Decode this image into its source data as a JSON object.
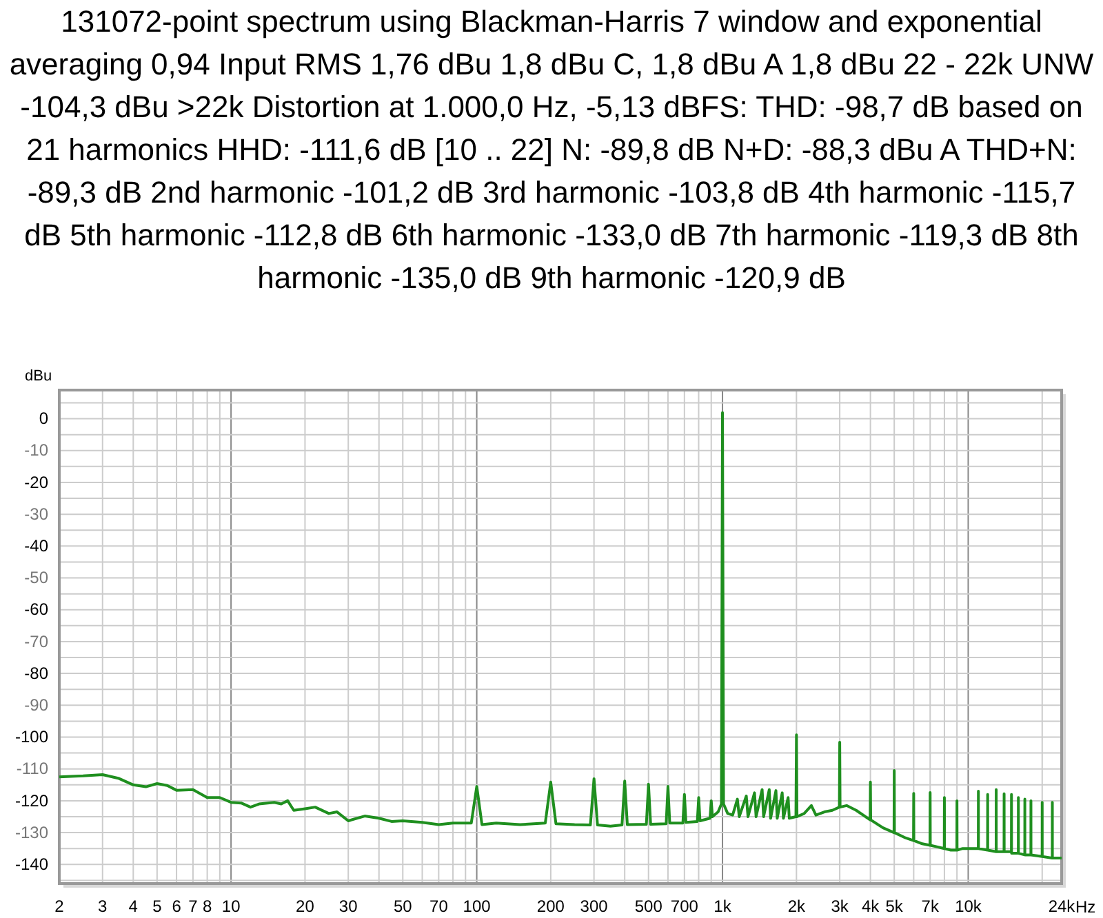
{
  "chart_data": {
    "type": "line",
    "title": "131072-point spectrum using Blackman-Harris 7 window and exponential averaging 0,94 Input RMS 1,76 dBu 1,8 dBu C, 1,8 dBu A 1,8 dBu 22 - 22k UNW -104,3 dBu >22k Distortion at 1.000,0 Hz, -5,13 dBFS: THD: -98,7 dB based on 21 harmonics HHD: -111,6 dB [10 .. 22] N: -89,8 dB N+D: -88,3 dBu A THD+N: -89,3 dB 2nd harmonic -101,2 dB 3rd harmonic -103,8 dB 4th harmonic -115,7 dB 5th harmonic -112,8 dB 6th harmonic -133,0 dB 7th harmonic -119,3 dB 8th harmonic -135,0 dB 9th harmonic -120,9 dB",
    "ylabel": "dBu",
    "log": "x",
    "grid": true,
    "xlim": [
      2,
      24000
    ],
    "ylim": [
      -146,
      9
    ],
    "xticks": [
      2,
      3,
      4,
      5,
      6,
      7,
      8,
      {
        "value": 9,
        "label": null
      },
      10,
      20,
      30,
      {
        "value": 40,
        "label": null
      },
      50,
      {
        "value": 60,
        "label": null
      },
      70,
      {
        "value": 80,
        "label": null
      },
      {
        "value": 90,
        "label": null
      },
      100,
      200,
      300,
      {
        "value": 400,
        "label": null
      },
      500,
      {
        "value": 600,
        "label": null
      },
      700,
      {
        "value": 800,
        "label": null
      },
      {
        "value": 900,
        "label": null
      },
      {
        "value": 1000,
        "label": "1k"
      },
      {
        "value": 2000,
        "label": "2k"
      },
      {
        "value": 3000,
        "label": "3k"
      },
      {
        "value": 4000,
        "label": "4k"
      },
      {
        "value": 5000,
        "label": "5k"
      },
      {
        "value": 6000,
        "label": null
      },
      {
        "value": 7000,
        "label": "7k"
      },
      {
        "value": 8000,
        "label": null
      },
      {
        "value": 9000,
        "label": null
      },
      {
        "value": 10000,
        "label": "10k"
      },
      {
        "value": 20000,
        "label": null
      },
      {
        "value": 24000,
        "label": "24k"
      }
    ],
    "xlabel": "Hz",
    "yticks": [
      {
        "value": 5,
        "label": null
      },
      0,
      {
        "value": -5,
        "label": null
      },
      -10,
      {
        "value": -15,
        "label": null
      },
      -20,
      {
        "value": -25,
        "label": null
      },
      -30,
      {
        "value": -35,
        "label": null
      },
      -40,
      {
        "value": -45,
        "label": null
      },
      -50,
      {
        "value": -55,
        "label": null
      },
      -60,
      {
        "value": -65,
        "label": null
      },
      -70,
      {
        "value": -75,
        "label": null
      },
      -80,
      {
        "value": -85,
        "label": null
      },
      -90,
      {
        "value": -95,
        "label": null
      },
      -100,
      {
        "value": -105,
        "label": null
      },
      -110,
      {
        "value": -115,
        "label": null
      },
      -120,
      {
        "value": -125,
        "label": null
      },
      -130,
      {
        "value": -135,
        "label": null
      },
      -140,
      {
        "value": -145,
        "label": null
      }
    ],
    "x": [
      2,
      2.5,
      3,
      3.5,
      4,
      4.5,
      5,
      5.5,
      6,
      7,
      8,
      9,
      10,
      11,
      12,
      13,
      15,
      16,
      17,
      18,
      20,
      22,
      25,
      27,
      30,
      35,
      40,
      45,
      50,
      60,
      70,
      80,
      95,
      100,
      105,
      120,
      150,
      190,
      200,
      210,
      250,
      290,
      300,
      310,
      350,
      390,
      400,
      410,
      490,
      500,
      510,
      590,
      600,
      610,
      690,
      700,
      710,
      790,
      800,
      810,
      890,
      900,
      910,
      960,
      990,
      1000,
      1010,
      1050,
      1100,
      1150,
      1170,
      1250,
      1270,
      1350,
      1370,
      1450,
      1470,
      1550,
      1570,
      1650,
      1670,
      1750,
      1770,
      1850,
      1870,
      1990,
      2000,
      2010,
      2150,
      2300,
      2400,
      2600,
      2800,
      2990,
      3000,
      3010,
      3200,
      3500,
      3990,
      4000,
      4010,
      4500,
      4990,
      5000,
      5010,
      5500,
      5990,
      6000,
      6010,
      6500,
      6990,
      7000,
      7010,
      7500,
      7990,
      8000,
      8010,
      8500,
      8990,
      9000,
      9010,
      9500,
      10990,
      11000,
      11010,
      11990,
      12000,
      12010,
      12990,
      13000,
      13010,
      13990,
      14000,
      14010,
      14990,
      15000,
      15010,
      15990,
      16000,
      16010,
      16990,
      17000,
      17010,
      17990,
      18000,
      18010,
      19990,
      20000,
      20010,
      21990,
      22000,
      22010,
      24000
    ],
    "series": [
      {
        "color": "#1f8f1f",
        "values": [
          -112.5,
          -112.2,
          -111.8,
          -113,
          -115,
          -115.6,
          -114.6,
          -115.2,
          -116.7,
          -116.5,
          -119,
          -119,
          -120.5,
          -120.7,
          -122,
          -121,
          -120.5,
          -121,
          -120,
          -123,
          -122.5,
          -122,
          -124,
          -123.5,
          -126.3,
          -124.8,
          -125.5,
          -126.5,
          -126.3,
          -126.8,
          -127.5,
          -127,
          -127,
          -115.5,
          -127.5,
          -127,
          -127.5,
          -127,
          -114.1,
          -127.2,
          -127.5,
          -127.6,
          -113.1,
          -127.6,
          -128,
          -127.6,
          -113.8,
          -127.5,
          -127.4,
          -114.8,
          -127.4,
          -127.2,
          -115.5,
          -127,
          -127,
          -118,
          -126.8,
          -126.5,
          -119,
          -126.3,
          -125.5,
          -120,
          -125,
          -123.5,
          -121,
          1.9,
          -121,
          -124,
          -124.5,
          -119.5,
          -125,
          -118.5,
          -125,
          -117.5,
          -125,
          -116.5,
          -125,
          -116.5,
          -125.5,
          -116.8,
          -125.5,
          -117.5,
          -125.5,
          -119,
          -125.5,
          -125,
          -99.3,
          -125,
          -124,
          -121.5,
          -124.5,
          -123.5,
          -123,
          -122,
          -101.6,
          -122,
          -121.5,
          -123,
          -126,
          -114.1,
          -126,
          -128.5,
          -130,
          -110.5,
          -130,
          -131.5,
          -132.5,
          -117.7,
          -132.5,
          -133.5,
          -134,
          -117.4,
          -134,
          -134.5,
          -135,
          -119,
          -135,
          -135.5,
          -135.5,
          -120,
          -135.5,
          -135,
          -135,
          -117,
          -135,
          -135.5,
          -118,
          -135.5,
          -136,
          -116.5,
          -136,
          -136,
          -117.8,
          -136,
          -136,
          -118,
          -136.5,
          -136.5,
          -119,
          -136.5,
          -137,
          -119.5,
          -137,
          -137,
          -120,
          -137,
          -137.5,
          -120.5,
          -137.5,
          -138,
          -120.5,
          -138,
          -138
        ]
      }
    ]
  }
}
